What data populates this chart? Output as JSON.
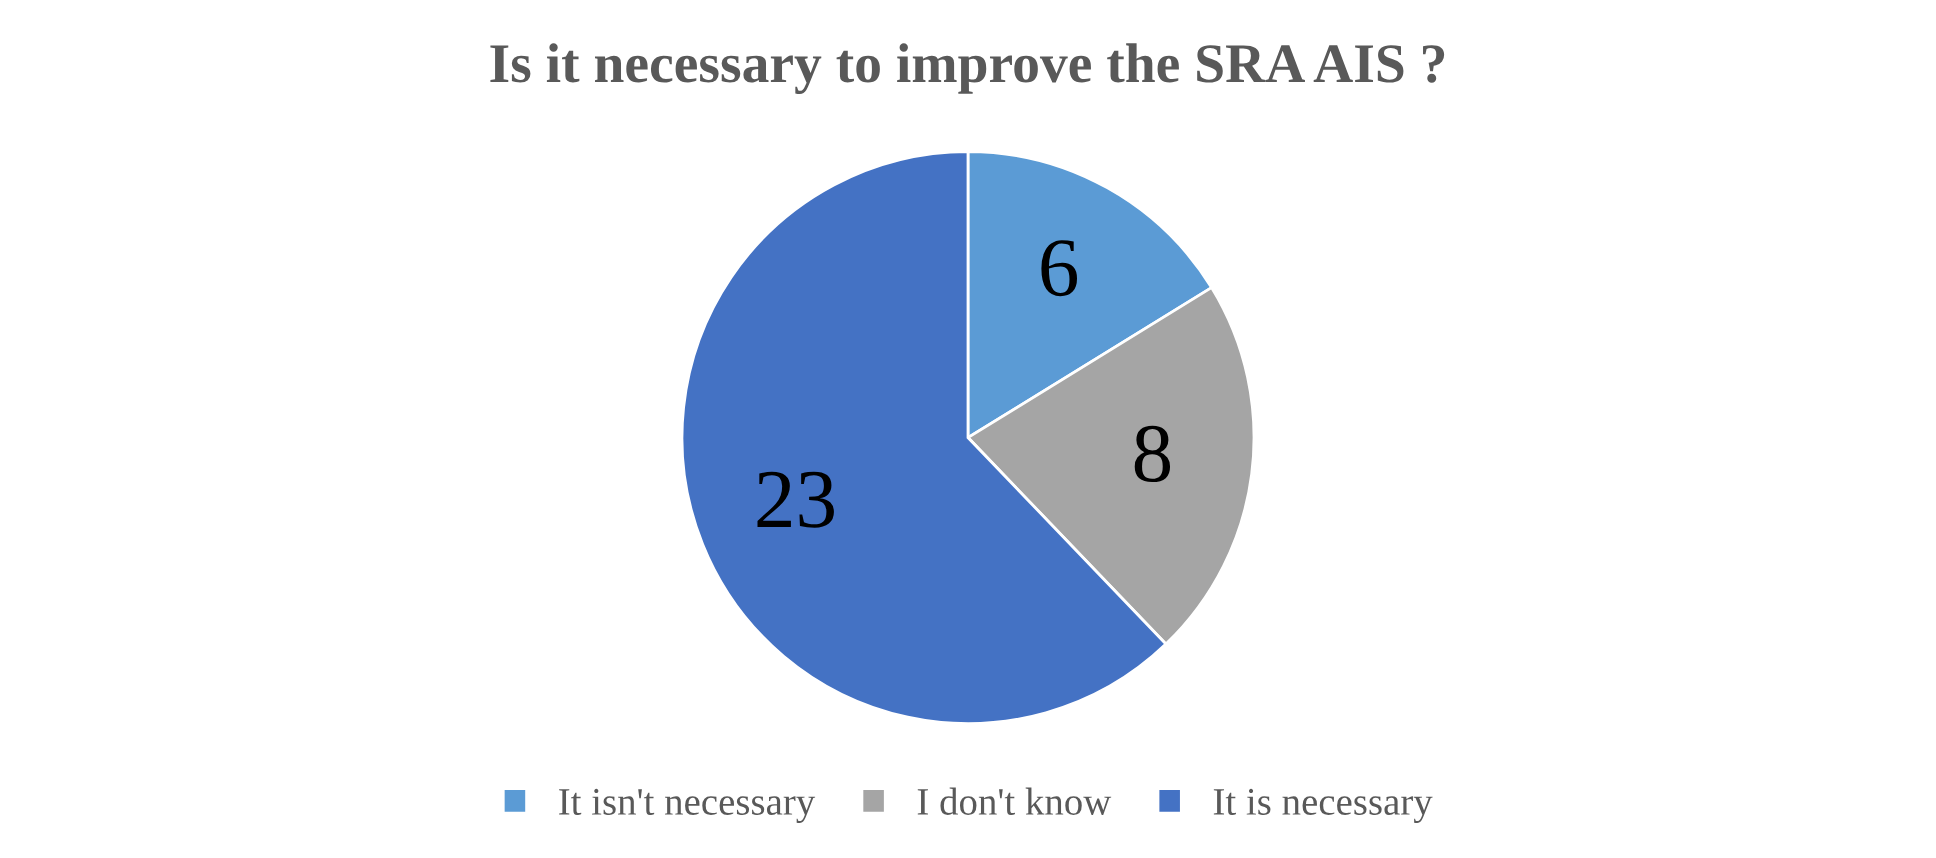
{
  "chart_data": {
    "type": "pie",
    "title": "Is it necessary to improve the SRA AIS ?",
    "categories": [
      "It isn't necessary",
      "I don't know",
      "It is necessary"
    ],
    "values": [
      6,
      8,
      23
    ],
    "colors": [
      "#5b9bd5",
      "#a5a5a5",
      "#4472c4"
    ],
    "data_labels": true,
    "legend": "bottom"
  }
}
